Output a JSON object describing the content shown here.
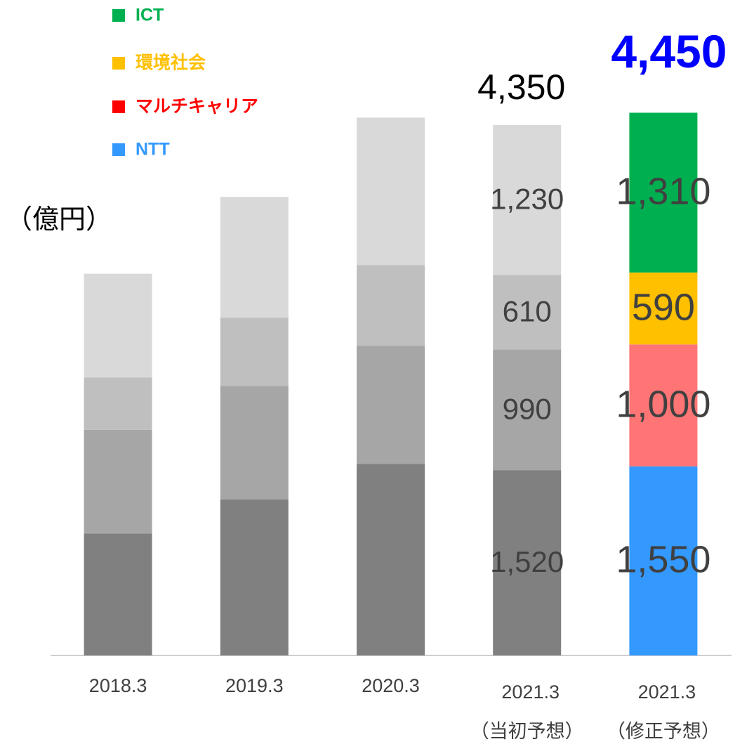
{
  "chart_data": {
    "type": "stacked_bar",
    "unit_label": "（億円）",
    "categories": [
      "2018.3",
      "2019.3",
      "2020.3",
      "2021.3",
      "2021.3"
    ],
    "category_notes": [
      null,
      null,
      null,
      "（当初予想）",
      "（修正予想）"
    ],
    "ylim": [
      0,
      5000
    ],
    "series": [
      {
        "name": "NTT",
        "legend_color": "#3399ff",
        "colors": [
          "#808080",
          "#808080",
          "#808080",
          "#808080",
          "#3399ff"
        ],
        "values": [
          1000,
          1280,
          1570,
          1520,
          1550
        ],
        "value_labels": [
          null,
          null,
          null,
          "1,520",
          "1,550"
        ]
      },
      {
        "name": "マルチキャリア",
        "legend_color": "#ff0000",
        "colors": [
          "#a6a6a6",
          "#a6a6a6",
          "#a6a6a6",
          "#a6a6a6",
          "#ff7575"
        ],
        "values": [
          850,
          930,
          970,
          990,
          1000
        ],
        "value_labels": [
          null,
          null,
          null,
          "990",
          "1,000"
        ]
      },
      {
        "name": "環境社会",
        "legend_color": "#ffc000",
        "colors": [
          "#bfbfbf",
          "#bfbfbf",
          "#bfbfbf",
          "#bfbfbf",
          "#ffc000"
        ],
        "values": [
          430,
          560,
          660,
          610,
          590
        ],
        "value_labels": [
          null,
          null,
          null,
          "610",
          "590"
        ]
      },
      {
        "name": "ICT",
        "legend_color": "#00b050",
        "colors": [
          "#d9d9d9",
          "#d9d9d9",
          "#d9d9d9",
          "#d9d9d9",
          "#00b050"
        ],
        "values": [
          850,
          990,
          1210,
          1230,
          1310
        ],
        "value_labels": [
          null,
          null,
          null,
          "1,230",
          "1,310"
        ]
      }
    ],
    "totals": [
      null,
      null,
      null,
      4350,
      4450
    ],
    "total_labels": [
      null,
      null,
      null,
      "4,350",
      "4,450"
    ]
  }
}
